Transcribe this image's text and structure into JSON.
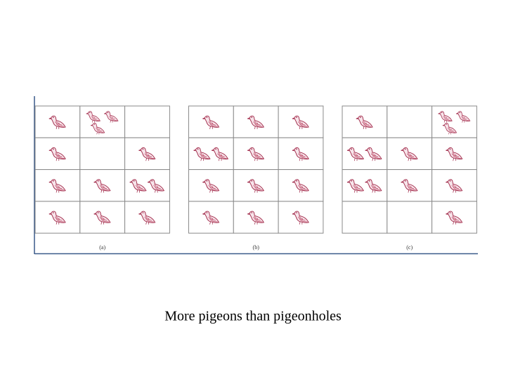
{
  "grids": [
    {
      "label": "(a)",
      "cells": [
        [
          1,
          3,
          0
        ],
        [
          1,
          0,
          1
        ],
        [
          1,
          1,
          2
        ],
        [
          1,
          1,
          1
        ]
      ]
    },
    {
      "label": "(b)",
      "cells": [
        [
          1,
          1,
          1
        ],
        [
          2,
          1,
          1
        ],
        [
          1,
          1,
          1
        ],
        [
          1,
          1,
          1
        ]
      ]
    },
    {
      "label": "(c)",
      "cells": [
        [
          1,
          0,
          3
        ],
        [
          2,
          1,
          1
        ],
        [
          2,
          1,
          1
        ],
        [
          0,
          0,
          1
        ]
      ]
    }
  ],
  "caption": "More pigeons than pigeonholes"
}
